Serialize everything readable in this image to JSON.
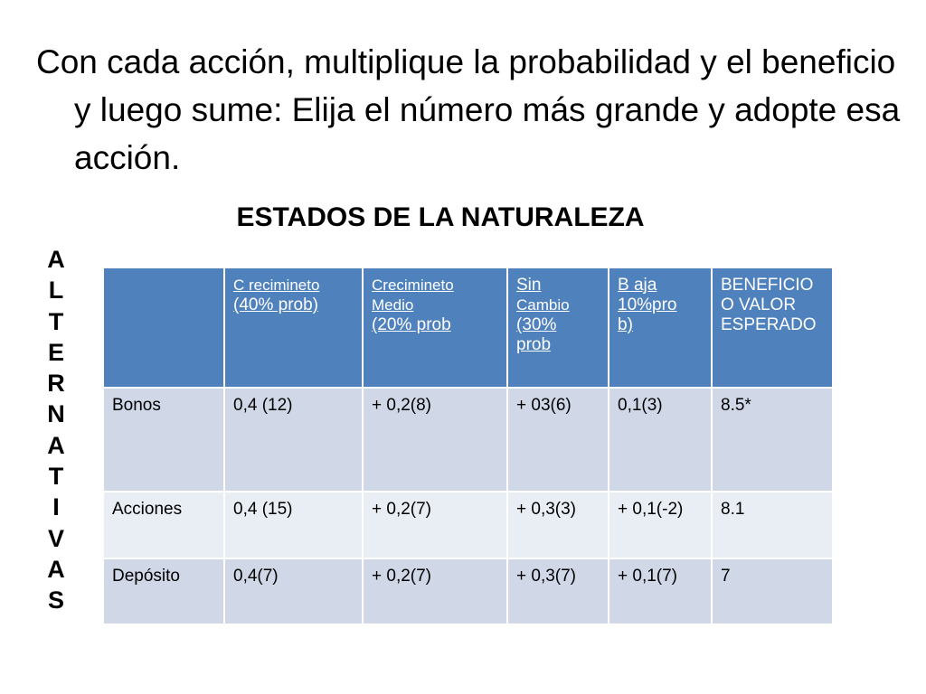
{
  "instruction": "Con cada acción, multiplique la probabilidad y el beneficio y luego sume: Elija el número más grande y adopte esa acción.",
  "states_title": "ESTADOS DE LA NATURALEZA",
  "alternatives_label": [
    "A",
    "L",
    "T",
    "E",
    "R",
    "N",
    "A",
    "T",
    "I",
    "V",
    "A",
    "S"
  ],
  "table": {
    "header": {
      "empty": "",
      "c1": {
        "line1": "C recimineto",
        "line2": "(40% prob)"
      },
      "c2": {
        "line1": "Crecimineto",
        "line2": "Medio",
        "line3": "(20% prob"
      },
      "c3": {
        "line1": "Sin",
        "line2": "Cambio",
        "line3": "(30%",
        "line4": "prob"
      },
      "c4": {
        "line1": "B aja",
        "line2": "10%pro",
        "line3": "b)"
      },
      "c5": {
        "line1": "BENEFICIO",
        "line2": "O VALOR",
        "line3": "ESPERADO"
      }
    },
    "rows": [
      {
        "name": "Bonos",
        "c1": "0,4 (12)",
        "c2": "+  0,2(8)",
        "c3": "+  03(6)",
        "c4": "0,1(3)",
        "c5": "8.5*"
      },
      {
        "name": "Acciones",
        "c1": "0,4 (15)",
        "c2": "+  0,2(7)",
        "c3": "+ 0,3(3)",
        "c4": "+ 0,1(-2)",
        "c5": "8.1"
      },
      {
        "name": "Depósito",
        "c1": "0,4(7)",
        "c2": "+  0,2(7)",
        "c3": "+ 0,3(7)",
        "c4": "+ 0,1(7)",
        "c5": "7"
      }
    ]
  },
  "colors": {
    "header_bg": "#4f81bd",
    "row_dark": "#d0d8e8",
    "row_light": "#e9edf4"
  }
}
